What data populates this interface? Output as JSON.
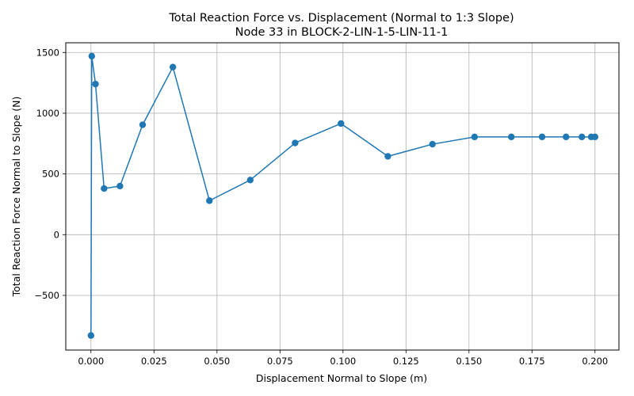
{
  "chart_data": {
    "type": "line",
    "title": "Total Reaction Force vs. Displacement (Normal to 1:3 Slope)",
    "subtitle": "Node 33 in BLOCK-2-LIN-1-5-LIN-11-1",
    "xlabel": "Displacement Normal to Slope (m)",
    "ylabel": "Total Reaction Force Normal to Slope (N)",
    "xlim": [
      -0.01,
      0.2095
    ],
    "ylim": [
      -950,
      1580
    ],
    "xticks": [
      0.0,
      0.025,
      0.05,
      0.075,
      0.1,
      0.125,
      0.15,
      0.175,
      0.2
    ],
    "xtick_labels": [
      "0.000",
      "0.025",
      "0.050",
      "0.075",
      "0.100",
      "0.125",
      "0.150",
      "0.175",
      "0.200"
    ],
    "yticks": [
      -500,
      0,
      500,
      1000,
      1500
    ],
    "ytick_labels": [
      "−500",
      "0",
      "500",
      "1000",
      "1500"
    ],
    "grid": true,
    "series": [
      {
        "color": "#1f77b4",
        "marker": "circle",
        "x": [
          0.0,
          0.0003,
          0.0018,
          0.0052,
          0.0115,
          0.0205,
          0.0325,
          0.047,
          0.0632,
          0.081,
          0.0992,
          0.1178,
          0.1355,
          0.1522,
          0.1668,
          0.179,
          0.1885,
          0.1948,
          0.1985,
          0.2
        ],
        "y": [
          -830,
          1470,
          1240,
          380,
          400,
          905,
          1380,
          280,
          450,
          755,
          915,
          645,
          745,
          805,
          805,
          805,
          805,
          805,
          805,
          805
        ]
      }
    ]
  }
}
